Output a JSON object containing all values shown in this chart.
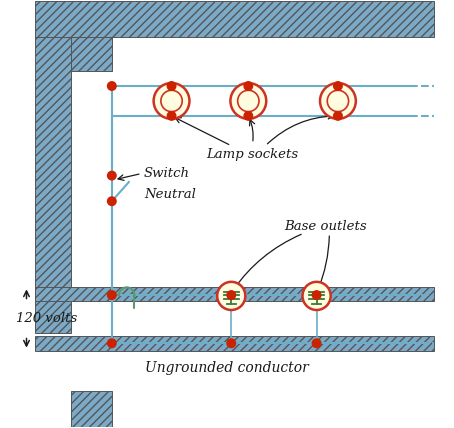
{
  "bg_color": "#ffffff",
  "hatch_color": "#7aaac8",
  "hatch_edge": "#555555",
  "wire_color": "#6aaec8",
  "wire_green": "#5a9a6a",
  "node_color": "#cc2200",
  "lamp_fill": "#fffce0",
  "lamp_ring": "#cc3322",
  "outlet_fill": "#fffce0",
  "outlet_ring": "#cc3322",
  "outlet_green": "#3a7a3a",
  "text_color": "#1a1a1a",
  "arrow_color": "#1a1a1a",
  "labels": {
    "lamp_sockets": "Lamp sockets",
    "switch": "Switch",
    "neutral": "Neutral",
    "base_outlets": "Base outlets",
    "volts": "120 volts",
    "ungrounded": "Ungrounded conductor"
  },
  "figsize": [
    4.54,
    4.28
  ],
  "dpi": 100
}
